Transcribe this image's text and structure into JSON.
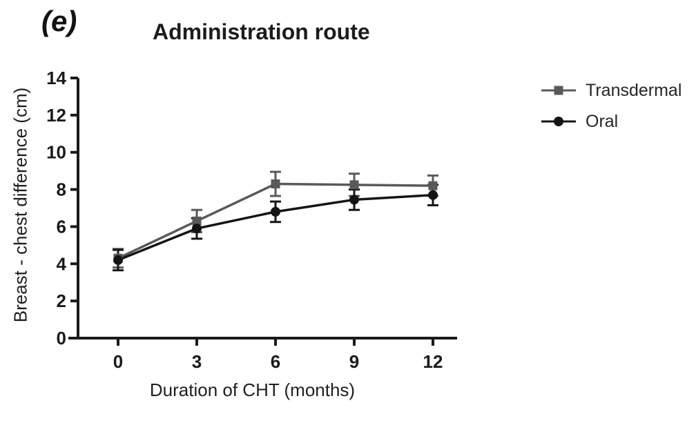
{
  "figure": {
    "panel_label": "(e)",
    "title": "Administration route"
  },
  "chart_data": {
    "type": "line",
    "title": "Administration route",
    "x": [
      0,
      3,
      6,
      9,
      12
    ],
    "xticks": [
      0,
      3,
      6,
      9,
      12
    ],
    "yticks": [
      0,
      2,
      4,
      6,
      8,
      10,
      12,
      14
    ],
    "xlabel": "Duration of CHT (months)",
    "ylabel": "Breast - chest difference (cm)",
    "ylim": [
      0,
      14
    ],
    "grid": false,
    "legend_position": "top-right",
    "axis_color": "#1a1a1a",
    "series": [
      {
        "name": "Transdermal",
        "marker": "square",
        "color": "#595959",
        "values": [
          4.3,
          6.3,
          8.3,
          8.25,
          8.2
        ],
        "errors": [
          0.5,
          0.6,
          0.65,
          0.6,
          0.55
        ]
      },
      {
        "name": "Oral",
        "marker": "circle",
        "color": "#141414",
        "values": [
          4.2,
          5.9,
          6.8,
          7.45,
          7.7
        ],
        "errors": [
          0.55,
          0.55,
          0.55,
          0.55,
          0.55
        ]
      }
    ]
  }
}
